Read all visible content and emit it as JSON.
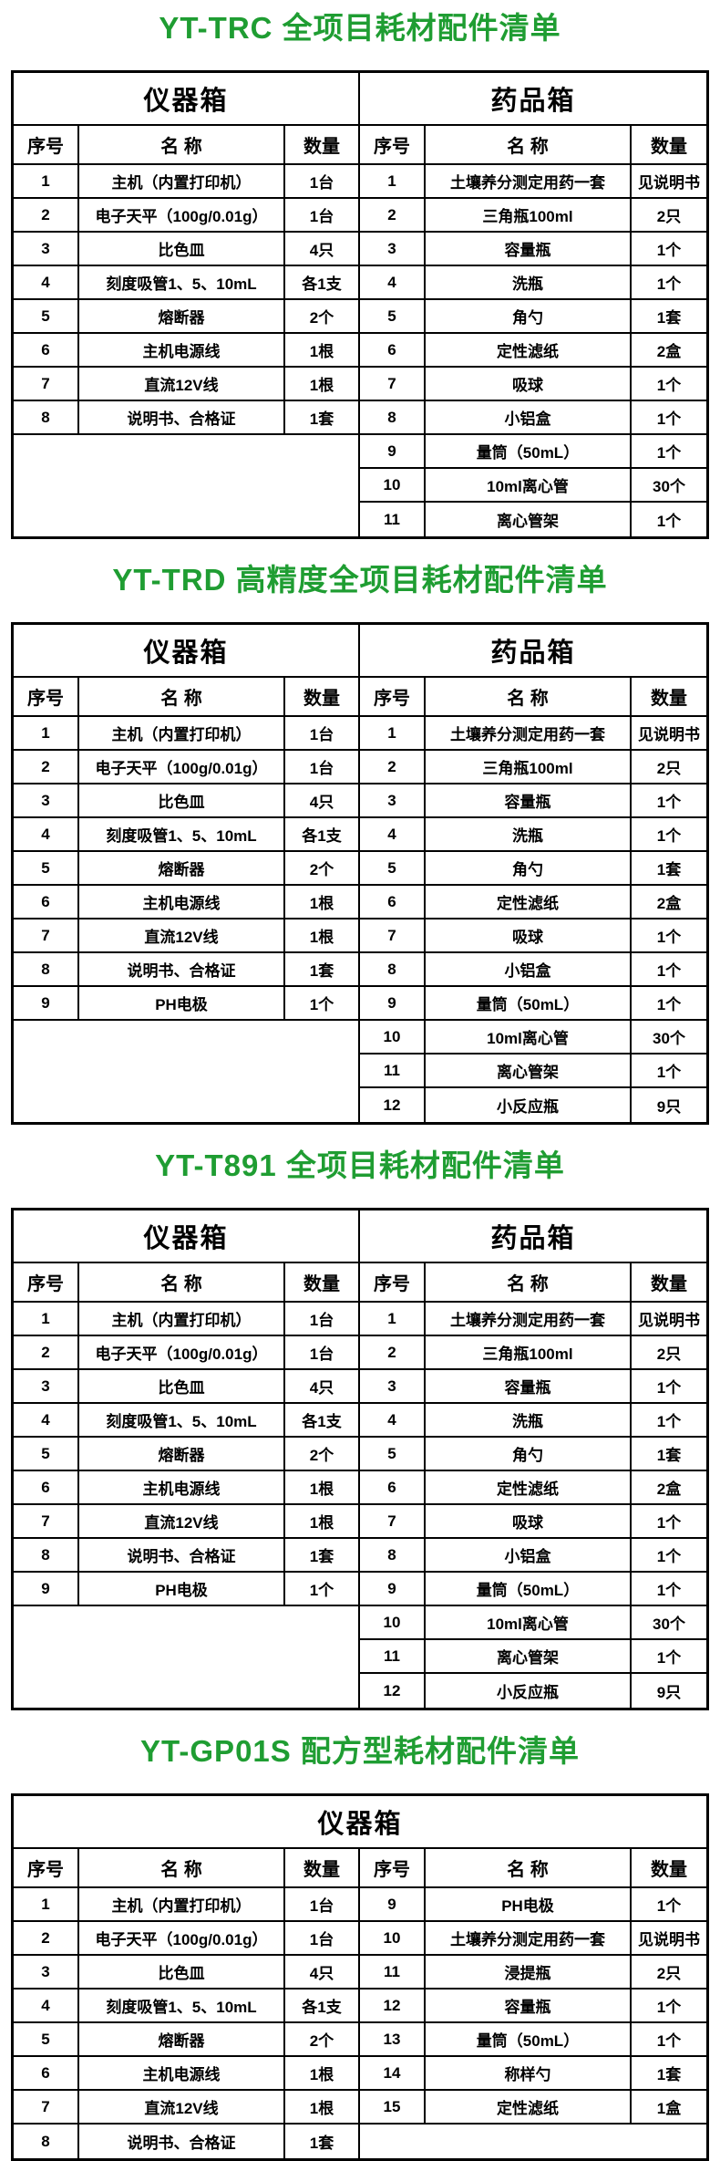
{
  "page": {
    "background": "#ffffff",
    "title_color": "#1f9d32",
    "border_color": "#000000"
  },
  "labels": {
    "col_no": "序号",
    "col_name": "名 称",
    "col_qty": "数量"
  },
  "tables": [
    {
      "title": "YT-TRC 全项目耗材配件清单",
      "box_headers": [
        "仪器箱",
        "药品箱"
      ],
      "left_rows": [
        [
          "1",
          "主机（内置打印机）",
          "1台"
        ],
        [
          "2",
          "电子天平（100g/0.01g）",
          "1台"
        ],
        [
          "3",
          "比色皿",
          "4只"
        ],
        [
          "4",
          "刻度吸管1、5、10mL",
          "各1支"
        ],
        [
          "5",
          "熔断器",
          "2个"
        ],
        [
          "6",
          "主机电源线",
          "1根"
        ],
        [
          "7",
          "直流12V线",
          "1根"
        ],
        [
          "8",
          "说明书、合格证",
          "1套"
        ]
      ],
      "right_rows": [
        [
          "1",
          "土壤养分测定用药一套",
          "见说明书"
        ],
        [
          "2",
          "三角瓶100ml",
          "2只"
        ],
        [
          "3",
          "容量瓶",
          "1个"
        ],
        [
          "4",
          "洗瓶",
          "1个"
        ],
        [
          "5",
          "角勺",
          "1套"
        ],
        [
          "6",
          "定性滤纸",
          "2盒"
        ],
        [
          "7",
          "吸球",
          "1个"
        ],
        [
          "8",
          "小铝盒",
          "1个"
        ],
        [
          "9",
          "量筒（50mL）",
          "1个"
        ],
        [
          "10",
          "10ml离心管",
          "30个"
        ],
        [
          "11",
          "离心管架",
          "1个"
        ]
      ]
    },
    {
      "title": "YT-TRD 高精度全项目耗材配件清单",
      "box_headers": [
        "仪器箱",
        "药品箱"
      ],
      "left_rows": [
        [
          "1",
          "主机（内置打印机）",
          "1台"
        ],
        [
          "2",
          "电子天平（100g/0.01g）",
          "1台"
        ],
        [
          "3",
          "比色皿",
          "4只"
        ],
        [
          "4",
          "刻度吸管1、5、10mL",
          "各1支"
        ],
        [
          "5",
          "熔断器",
          "2个"
        ],
        [
          "6",
          "主机电源线",
          "1根"
        ],
        [
          "7",
          "直流12V线",
          "1根"
        ],
        [
          "8",
          "说明书、合格证",
          "1套"
        ],
        [
          "9",
          "PH电极",
          "1个"
        ]
      ],
      "right_rows": [
        [
          "1",
          "土壤养分测定用药一套",
          "见说明书"
        ],
        [
          "2",
          "三角瓶100ml",
          "2只"
        ],
        [
          "3",
          "容量瓶",
          "1个"
        ],
        [
          "4",
          "洗瓶",
          "1个"
        ],
        [
          "5",
          "角勺",
          "1套"
        ],
        [
          "6",
          "定性滤纸",
          "2盒"
        ],
        [
          "7",
          "吸球",
          "1个"
        ],
        [
          "8",
          "小铝盒",
          "1个"
        ],
        [
          "9",
          "量筒（50mL）",
          "1个"
        ],
        [
          "10",
          "10ml离心管",
          "30个"
        ],
        [
          "11",
          "离心管架",
          "1个"
        ],
        [
          "12",
          "小反应瓶",
          "9只"
        ]
      ]
    },
    {
      "title": "YT-T891 全项目耗材配件清单",
      "box_headers": [
        "仪器箱",
        "药品箱"
      ],
      "left_rows": [
        [
          "1",
          "主机（内置打印机）",
          "1台"
        ],
        [
          "2",
          "电子天平（100g/0.01g）",
          "1台"
        ],
        [
          "3",
          "比色皿",
          "4只"
        ],
        [
          "4",
          "刻度吸管1、5、10mL",
          "各1支"
        ],
        [
          "5",
          "熔断器",
          "2个"
        ],
        [
          "6",
          "主机电源线",
          "1根"
        ],
        [
          "7",
          "直流12V线",
          "1根"
        ],
        [
          "8",
          "说明书、合格证",
          "1套"
        ],
        [
          "9",
          "PH电极",
          "1个"
        ]
      ],
      "right_rows": [
        [
          "1",
          "土壤养分测定用药一套",
          "见说明书"
        ],
        [
          "2",
          "三角瓶100ml",
          "2只"
        ],
        [
          "3",
          "容量瓶",
          "1个"
        ],
        [
          "4",
          "洗瓶",
          "1个"
        ],
        [
          "5",
          "角勺",
          "1套"
        ],
        [
          "6",
          "定性滤纸",
          "2盒"
        ],
        [
          "7",
          "吸球",
          "1个"
        ],
        [
          "8",
          "小铝盒",
          "1个"
        ],
        [
          "9",
          "量筒（50mL）",
          "1个"
        ],
        [
          "10",
          "10ml离心管",
          "30个"
        ],
        [
          "11",
          "离心管架",
          "1个"
        ],
        [
          "12",
          "小反应瓶",
          "9只"
        ]
      ]
    },
    {
      "title": "YT-GP01S 配方型耗材配件清单",
      "box_headers": [
        "仪器箱"
      ],
      "left_rows": [
        [
          "1",
          "主机（内置打印机）",
          "1台"
        ],
        [
          "2",
          "电子天平（100g/0.01g）",
          "1台"
        ],
        [
          "3",
          "比色皿",
          "4只"
        ],
        [
          "4",
          "刻度吸管1、5、10mL",
          "各1支"
        ],
        [
          "5",
          "熔断器",
          "2个"
        ],
        [
          "6",
          "主机电源线",
          "1根"
        ],
        [
          "7",
          "直流12V线",
          "1根"
        ],
        [
          "8",
          "说明书、合格证",
          "1套"
        ]
      ],
      "right_rows": [
        [
          "9",
          "PH电极",
          "1个"
        ],
        [
          "10",
          "土壤养分测定用药一套",
          "见说明书"
        ],
        [
          "11",
          "浸提瓶",
          "2只"
        ],
        [
          "12",
          "容量瓶",
          "1个"
        ],
        [
          "13",
          "量筒（50mL）",
          "1个"
        ],
        [
          "14",
          "称样勺",
          "1套"
        ],
        [
          "15",
          "定性滤纸",
          "1盒"
        ]
      ]
    }
  ]
}
